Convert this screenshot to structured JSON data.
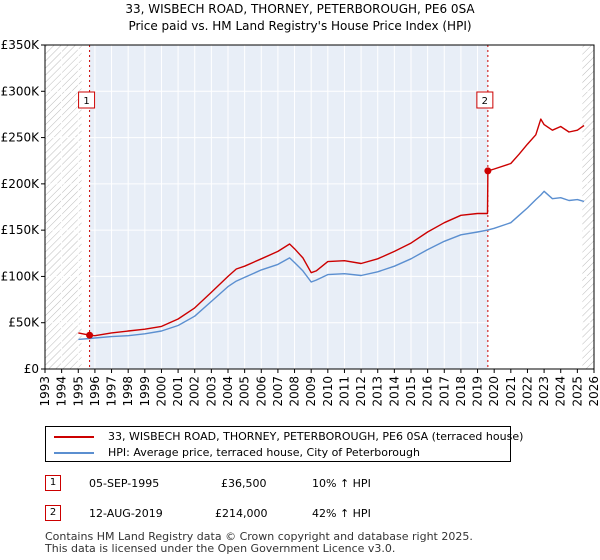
{
  "chart_data": {
    "type": "line",
    "title": "33, WISBECH ROAD, THORNEY, PETERBOROUGH, PE6 0SA",
    "subtitle": "Price paid vs. HM Land Registry's House Price Index (HPI)",
    "xlim": [
      1993,
      2026
    ],
    "ylim": [
      0,
      350000
    ],
    "yticks": [
      0,
      50000,
      100000,
      150000,
      200000,
      250000,
      300000,
      350000
    ],
    "ytick_labels": [
      "£0",
      "£50K",
      "£100K",
      "£150K",
      "£200K",
      "£250K",
      "£300K",
      "£350K"
    ],
    "xticks": [
      1993,
      1994,
      1995,
      1996,
      1997,
      1998,
      1999,
      2000,
      2001,
      2002,
      2003,
      2004,
      2005,
      2006,
      2007,
      2008,
      2009,
      2010,
      2011,
      2012,
      2013,
      2014,
      2015,
      2016,
      2017,
      2018,
      2019,
      2020,
      2021,
      2022,
      2023,
      2024,
      2025,
      2026
    ],
    "hatched_ranges": [
      [
        1993,
        1995.2
      ],
      [
        2025.3,
        2026
      ]
    ],
    "colors": {
      "property": "#cc0000",
      "hpi": "#5b8fd0",
      "band": "#e8eef7"
    },
    "series": [
      {
        "name": "33, WISBECH ROAD, THORNEY, PETERBOROUGH, PE6 0SA (terraced house)",
        "color": "#cc0000",
        "x": [
          1995.0,
          1995.68,
          1996.0,
          1997.0,
          1998.0,
          1999.0,
          2000.0,
          2001.0,
          2002.0,
          2003.0,
          2004.0,
          2004.5,
          2005.0,
          2006.0,
          2007.0,
          2007.7,
          2008.0,
          2008.5,
          2009.0,
          2009.3,
          2010.0,
          2011.0,
          2012.0,
          2013.0,
          2014.0,
          2015.0,
          2016.0,
          2017.0,
          2018.0,
          2019.0,
          2019.6,
          2019.62,
          2020.0,
          2021.0,
          2021.5,
          2022.0,
          2022.5,
          2022.8,
          2023.0,
          2023.5,
          2024.0,
          2024.5,
          2025.0,
          2025.4
        ],
        "y": [
          39000,
          36500,
          36000,
          39000,
          41000,
          43000,
          46000,
          54000,
          66000,
          83000,
          100000,
          108000,
          111000,
          119000,
          127000,
          135000,
          130000,
          120000,
          104000,
          106000,
          116000,
          117000,
          114000,
          119000,
          127000,
          136000,
          148000,
          158000,
          166000,
          168000,
          168000,
          214000,
          216000,
          222000,
          232000,
          243000,
          253000,
          270000,
          264000,
          258000,
          262000,
          256000,
          258000,
          263000
        ]
      },
      {
        "name": "HPI: Average price, terraced house, City of Peterborough",
        "color": "#5b8fd0",
        "x": [
          1995.0,
          1995.68,
          1996.0,
          1997.0,
          1998.0,
          1999.0,
          2000.0,
          2001.0,
          2002.0,
          2003.0,
          2004.0,
          2004.5,
          2005.0,
          2006.0,
          2007.0,
          2007.7,
          2008.0,
          2008.5,
          2009.0,
          2009.3,
          2010.0,
          2011.0,
          2012.0,
          2013.0,
          2014.0,
          2015.0,
          2016.0,
          2017.0,
          2018.0,
          2019.0,
          2019.6,
          2020.0,
          2021.0,
          2021.5,
          2022.0,
          2022.5,
          2022.8,
          2023.0,
          2023.5,
          2024.0,
          2024.5,
          2025.0,
          2025.4
        ],
        "y": [
          32000,
          33000,
          33500,
          35000,
          36000,
          38000,
          41000,
          47000,
          57000,
          73000,
          89000,
          95000,
          99000,
          107000,
          113000,
          120000,
          115000,
          106000,
          94000,
          96000,
          102000,
          103000,
          101000,
          105000,
          111000,
          119000,
          129000,
          138000,
          145000,
          148000,
          150000,
          152000,
          158000,
          166000,
          174000,
          183000,
          188000,
          192000,
          184000,
          185000,
          182000,
          183000,
          181000
        ]
      }
    ],
    "annotations": [
      {
        "label": "1",
        "x": 1995.68,
        "y": 36500
      },
      {
        "label": "2",
        "x": 2019.62,
        "y": 214000
      }
    ]
  },
  "legend": {
    "property_label": "33, WISBECH ROAD, THORNEY, PETERBOROUGH, PE6 0SA (terraced house)",
    "hpi_label": "HPI: Average price, terraced house, City of Peterborough"
  },
  "transactions": [
    {
      "marker": "1",
      "date": "05-SEP-1995",
      "price": "£36,500",
      "hpi_change": "10% ↑ HPI"
    },
    {
      "marker": "2",
      "date": "12-AUG-2019",
      "price": "£214,000",
      "hpi_change": "42% ↑ HPI"
    }
  ],
  "footer": {
    "line1": "Contains HM Land Registry data © Crown copyright and database right 2025.",
    "line2": "This data is licensed under the Open Government Licence v3.0."
  }
}
